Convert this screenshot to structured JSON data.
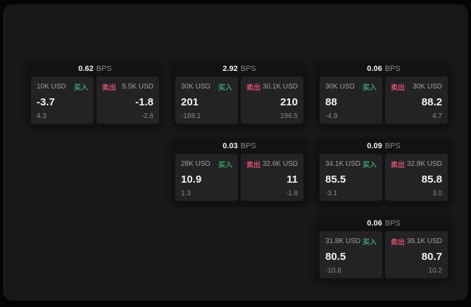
{
  "unit_label": "BPS",
  "buy_label": "买入",
  "sell_label": "卖出",
  "colors": {
    "buy_green": "#3fa067",
    "sell_red": "#d8506b",
    "window_bg": "#18181a",
    "card_bg": "#121214",
    "panel_bg": "#232326"
  },
  "cards": [
    {
      "bps": "0.62",
      "col": 1,
      "row": 1,
      "buy": {
        "amount": "10K USD",
        "value": "-3.7",
        "sub": "4.3"
      },
      "sell": {
        "amount": "5.5K USD",
        "value": "-1.8",
        "sub": "-2.6"
      }
    },
    {
      "bps": "2.92",
      "col": 2,
      "row": 1,
      "buy": {
        "amount": "30K USD",
        "value": "201",
        "sub": "-188.1"
      },
      "sell": {
        "amount": "30.1K USD",
        "value": "210",
        "sub": "196.5"
      }
    },
    {
      "bps": "0.06",
      "col": 3,
      "row": 1,
      "buy": {
        "amount": "30K USD",
        "value": "88",
        "sub": "-4.9"
      },
      "sell": {
        "amount": "30K USD",
        "value": "88.2",
        "sub": "4.7"
      }
    },
    {
      "bps": "0.03",
      "col": 2,
      "row": 2,
      "buy": {
        "amount": "28K USD",
        "value": "10.9",
        "sub": "1.3"
      },
      "sell": {
        "amount": "32.6K USD",
        "value": "11",
        "sub": "-1.8"
      }
    },
    {
      "bps": "0.09",
      "col": 3,
      "row": 2,
      "buy": {
        "amount": "34.1K USD",
        "value": "85.5",
        "sub": "-3.1"
      },
      "sell": {
        "amount": "32.8K USD",
        "value": "85.8",
        "sub": "3.0"
      }
    },
    {
      "bps": "0.06",
      "col": 3,
      "row": 3,
      "buy": {
        "amount": "31.8K USD",
        "value": "80.5",
        "sub": "-10.8"
      },
      "sell": {
        "amount": "39.1K USD",
        "value": "80.7",
        "sub": "10.2"
      }
    }
  ]
}
